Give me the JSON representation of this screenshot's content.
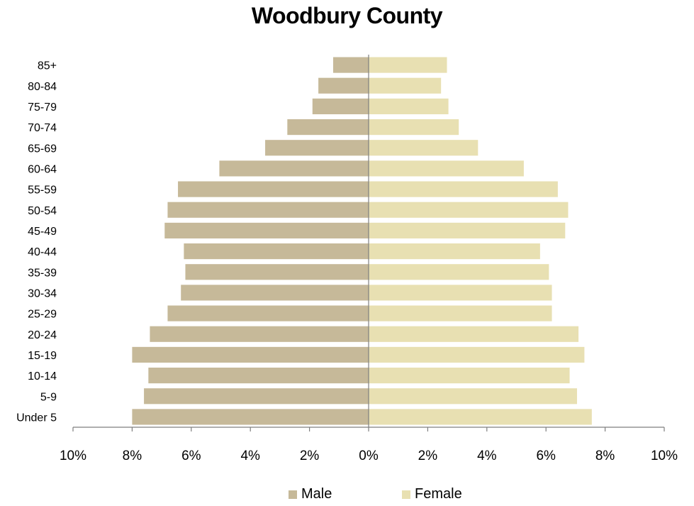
{
  "chart_data": {
    "type": "bar",
    "orientation": "horizontal",
    "title": "Woodbury County",
    "categories": [
      "Under 5",
      "5-9",
      "10-14",
      "15-19",
      "20-24",
      "25-29",
      "30-34",
      "35-39",
      "40-44",
      "45-49",
      "50-54",
      "55-59",
      "60-64",
      "65-69",
      "70-74",
      "75-79",
      "80-84",
      "85+"
    ],
    "series": [
      {
        "name": "Male",
        "color": "#c6b999",
        "values": [
          8.0,
          7.6,
          7.45,
          8.0,
          7.4,
          6.8,
          6.35,
          6.2,
          6.25,
          6.9,
          6.8,
          6.45,
          5.05,
          3.5,
          2.75,
          1.9,
          1.7,
          1.2
        ]
      },
      {
        "name": "Female",
        "color": "#e8e0b2",
        "values": [
          7.55,
          7.05,
          6.8,
          7.3,
          7.1,
          6.2,
          6.2,
          6.1,
          5.8,
          6.65,
          6.75,
          6.4,
          5.25,
          3.7,
          3.05,
          2.7,
          2.45,
          2.65
        ]
      }
    ],
    "x_tick_labels": [
      "10%",
      "8%",
      "6%",
      "4%",
      "2%",
      "0%",
      "2%",
      "4%",
      "6%",
      "8%",
      "10%"
    ],
    "xlim": [
      -10,
      10
    ],
    "xlabel": "",
    "ylabel": "",
    "grid": false,
    "legend_position": "bottom"
  }
}
